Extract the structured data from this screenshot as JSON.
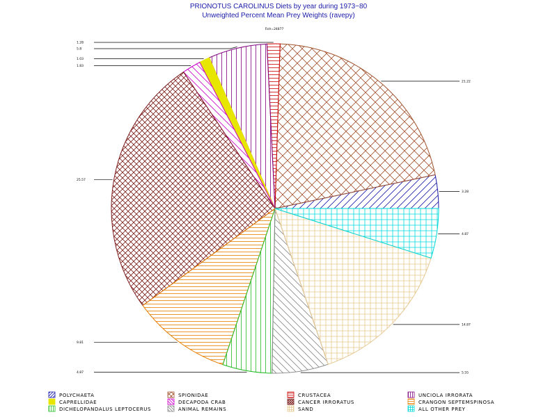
{
  "chart_data": {
    "type": "pie",
    "title": "PRIONOTUS CAROLINUS Diets by year during 1973−80",
    "subtitle": "Unweighted Percent Mean Prey Weights (ravepy)",
    "sample_label": "Fish=24877",
    "slices": [
      {
        "name": "POLYCHAETA",
        "value": 3.28,
        "label": "3.28",
        "color": "#1a1aa8",
        "pattern": "diag-right"
      },
      {
        "name": "SPIONIDAE",
        "value": 21.22,
        "label": "21.22",
        "color": "#a0522d",
        "pattern": "crosshatch"
      },
      {
        "name": "CRUSTACEA",
        "value": 1.28,
        "label": "1.28",
        "color": "#cc0000",
        "pattern": "horizontal"
      },
      {
        "name": "UNCIOLA IRRORATA",
        "value": 5.8,
        "label": "5.8",
        "color": "#800080",
        "pattern": "vertical"
      },
      {
        "name": "CAPRELLIDAE",
        "value": 1.03,
        "label": "1.03",
        "color": "#e6e600",
        "pattern": "solid"
      },
      {
        "name": "DECAPODA CRAB",
        "value": 1.83,
        "label": "1.83",
        "color": "#cc00cc",
        "pattern": "diag-left"
      },
      {
        "name": "CANCER IRRORATUS",
        "value": 25.57,
        "label": "25.57",
        "color": "#7b1b1b",
        "pattern": "crosshatch-fine"
      },
      {
        "name": "CRANGON SEPTEMSPINOSA",
        "value": 9.81,
        "label": "9.81",
        "color": "#e67e00",
        "pattern": "horizontal"
      },
      {
        "name": "DICHELOPANDALUS LEPTOCERUS",
        "value": 4.87,
        "label": "4.87",
        "color": "#22bb22",
        "pattern": "vertical"
      },
      {
        "name": "ANIMAL REMAINS",
        "value": 5.55,
        "label": "5.55",
        "color": "#888888",
        "pattern": "diag-left"
      },
      {
        "name": "SAND",
        "value": 14.87,
        "label": "14.87",
        "color": "#e6c890",
        "pattern": "grid"
      },
      {
        "name": "ALL OTHER PREY",
        "value": 4.87,
        "label": "4.87",
        "color": "#00d8d8",
        "pattern": "grid"
      }
    ]
  }
}
